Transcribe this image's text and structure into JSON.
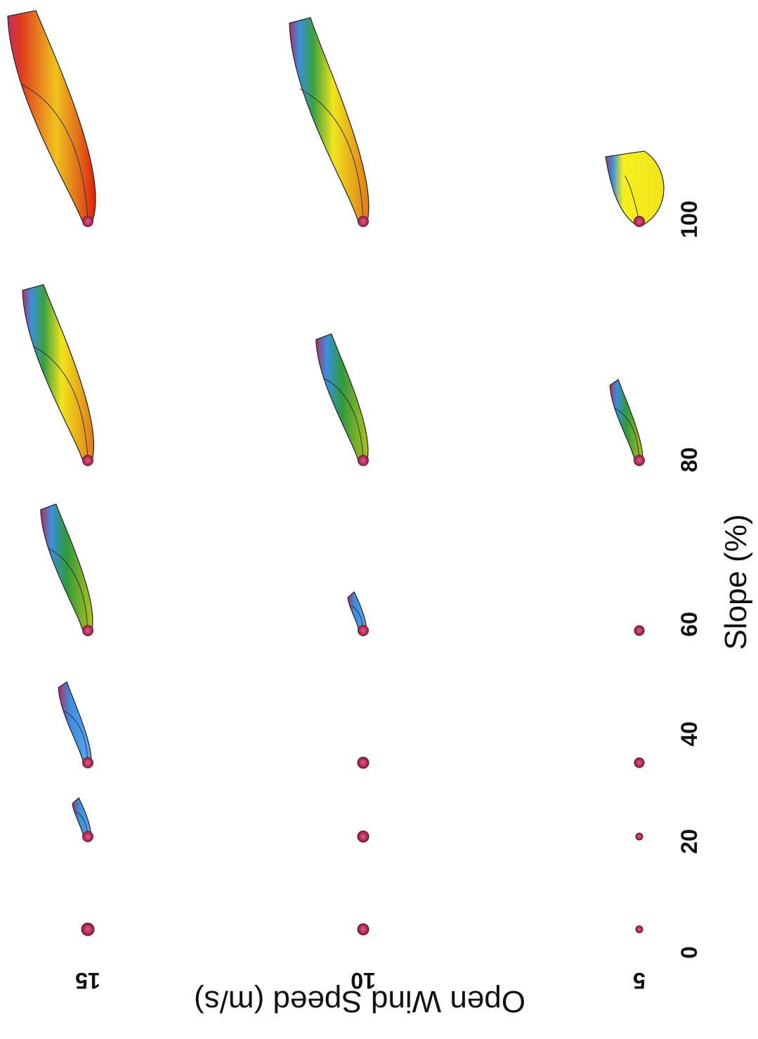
{
  "chart_data": {
    "type": "scatter",
    "title": "",
    "xlabel": "Slope (%)",
    "ylabel": "Open Wind Speed (m/s)",
    "x_ticks": [
      "0",
      "20",
      "40",
      "60",
      "80",
      "100"
    ],
    "y_ticks": [
      "5",
      "10",
      "15"
    ],
    "x": [
      0,
      20,
      40,
      60,
      80,
      100
    ],
    "grid": false,
    "legend": "none",
    "orientation": "rotated 90 degrees clockwise",
    "note_colors": {
      "base": "#b8325f",
      "blue": "#3a8ee0",
      "green": "#2f9a3a",
      "yellow": "#f0e81c",
      "orange": "#e0861e",
      "red": "#e02414"
    },
    "series": [
      {
        "wind": 15,
        "shape": [
          "dot",
          "small-plume",
          "short-plume",
          "medium-plume",
          "long-plume",
          "very-long-plume"
        ],
        "color": [
          "base",
          "blue",
          "blue",
          "green",
          "orange",
          "red"
        ]
      },
      {
        "wind": 10,
        "shape": [
          "dot",
          "dot",
          "dot",
          "small-plume",
          "medium-plume",
          "long-plume"
        ],
        "color": [
          "base",
          "base",
          "base",
          "blue",
          "green",
          "orange"
        ]
      },
      {
        "wind": 5,
        "shape": [
          "dot",
          "dot",
          "dot",
          "dot",
          "short-plume",
          "wide-plume"
        ],
        "color": [
          "base",
          "base",
          "base",
          "base",
          "green",
          "yellow"
        ]
      }
    ]
  }
}
